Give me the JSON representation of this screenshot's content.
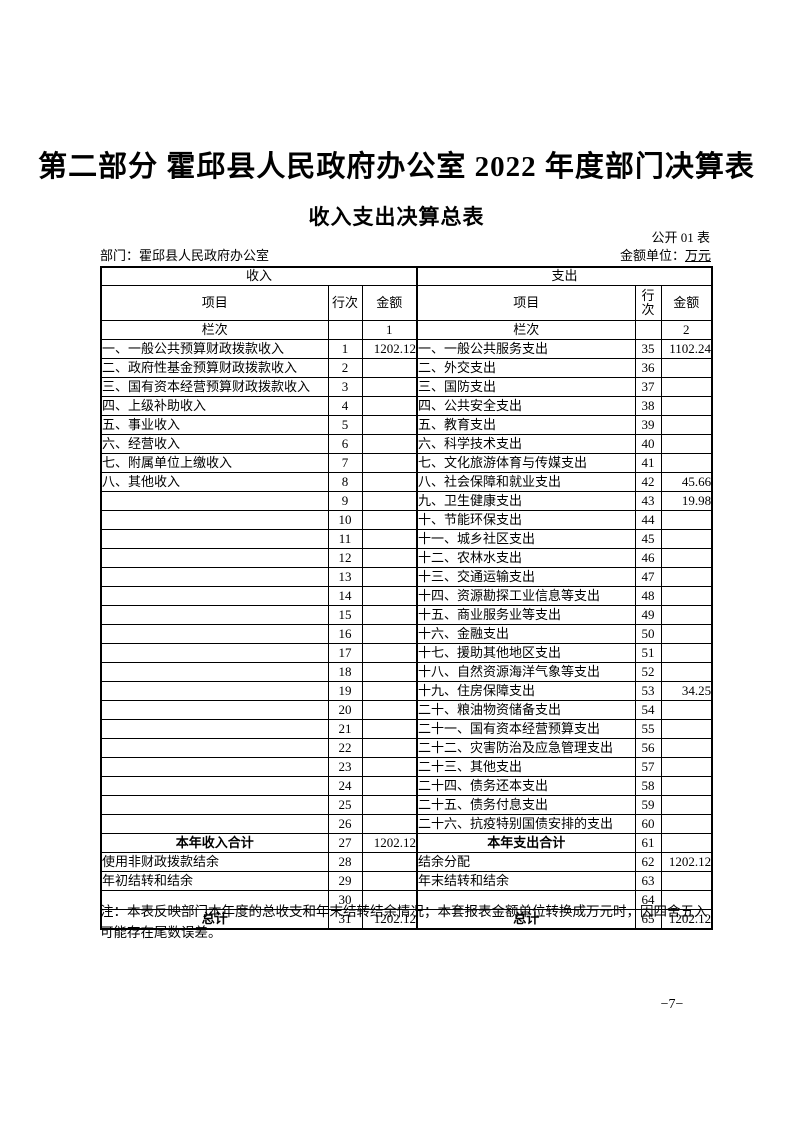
{
  "page": {
    "title": "第二部分 霍邱县人民政府办公室 2022 年度部门决算表",
    "subtitle": "收入支出决算总表",
    "table_code": "公开 01 表",
    "department": "部门：霍邱县人民政府办公室",
    "unit_label": "金额单位：",
    "unit_value": "万元",
    "note": "注：本表反映部门本年度的总收支和年末结转结余情况；本套报表金额单位转换成万元时，因四舍五入可能存在尾数误差。",
    "page_number": "−7−"
  },
  "table": {
    "income_header": "收入",
    "expense_header": "支出",
    "col_item": "项目",
    "col_row": "行次",
    "col_amount": "金额",
    "lanci": "栏次",
    "income_col_index": "1",
    "expense_col_index": "2",
    "rows": [
      {
        "income_item": "一、一般公共预算财政拨款收入",
        "income_row": "1",
        "income_amount": "1202.12",
        "expense_item": "一、一般公共服务支出",
        "expense_row": "35",
        "expense_amount": "1102.24"
      },
      {
        "income_item": "二、政府性基金预算财政拨款收入",
        "income_row": "2",
        "income_amount": "",
        "expense_item": "二、外交支出",
        "expense_row": "36",
        "expense_amount": ""
      },
      {
        "income_item": "三、国有资本经营预算财政拨款收入",
        "income_row": "3",
        "income_amount": "",
        "expense_item": "三、国防支出",
        "expense_row": "37",
        "expense_amount": ""
      },
      {
        "income_item": "四、上级补助收入",
        "income_row": "4",
        "income_amount": "",
        "expense_item": "四、公共安全支出",
        "expense_row": "38",
        "expense_amount": ""
      },
      {
        "income_item": "五、事业收入",
        "income_row": "5",
        "income_amount": "",
        "expense_item": "五、教育支出",
        "expense_row": "39",
        "expense_amount": ""
      },
      {
        "income_item": "六、经营收入",
        "income_row": "6",
        "income_amount": "",
        "expense_item": "六、科学技术支出",
        "expense_row": "40",
        "expense_amount": ""
      },
      {
        "income_item": "七、附属单位上缴收入",
        "income_row": "7",
        "income_amount": "",
        "expense_item": "七、文化旅游体育与传媒支出",
        "expense_row": "41",
        "expense_amount": ""
      },
      {
        "income_item": "八、其他收入",
        "income_row": "8",
        "income_amount": "",
        "expense_item": "八、社会保障和就业支出",
        "expense_row": "42",
        "expense_amount": "45.66"
      },
      {
        "income_item": "",
        "income_row": "9",
        "income_amount": "",
        "expense_item": "九、卫生健康支出",
        "expense_row": "43",
        "expense_amount": "19.98"
      },
      {
        "income_item": "",
        "income_row": "10",
        "income_amount": "",
        "expense_item": "十、节能环保支出",
        "expense_row": "44",
        "expense_amount": ""
      },
      {
        "income_item": "",
        "income_row": "11",
        "income_amount": "",
        "expense_item": "十一、城乡社区支出",
        "expense_row": "45",
        "expense_amount": ""
      },
      {
        "income_item": "",
        "income_row": "12",
        "income_amount": "",
        "expense_item": "十二、农林水支出",
        "expense_row": "46",
        "expense_amount": ""
      },
      {
        "income_item": "",
        "income_row": "13",
        "income_amount": "",
        "expense_item": "十三、交通运输支出",
        "expense_row": "47",
        "expense_amount": ""
      },
      {
        "income_item": "",
        "income_row": "14",
        "income_amount": "",
        "expense_item": "十四、资源勘探工业信息等支出",
        "expense_row": "48",
        "expense_amount": ""
      },
      {
        "income_item": "",
        "income_row": "15",
        "income_amount": "",
        "expense_item": "十五、商业服务业等支出",
        "expense_row": "49",
        "expense_amount": ""
      },
      {
        "income_item": "",
        "income_row": "16",
        "income_amount": "",
        "expense_item": "十六、金融支出",
        "expense_row": "50",
        "expense_amount": ""
      },
      {
        "income_item": "",
        "income_row": "17",
        "income_amount": "",
        "expense_item": "十七、援助其他地区支出",
        "expense_row": "51",
        "expense_amount": ""
      },
      {
        "income_item": "",
        "income_row": "18",
        "income_amount": "",
        "expense_item": "十八、自然资源海洋气象等支出",
        "expense_row": "52",
        "expense_amount": ""
      },
      {
        "income_item": "",
        "income_row": "19",
        "income_amount": "",
        "expense_item": "十九、住房保障支出",
        "expense_row": "53",
        "expense_amount": "34.25"
      },
      {
        "income_item": "",
        "income_row": "20",
        "income_amount": "",
        "expense_item": "二十、粮油物资储备支出",
        "expense_row": "54",
        "expense_amount": ""
      },
      {
        "income_item": "",
        "income_row": "21",
        "income_amount": "",
        "expense_item": "二十一、国有资本经营预算支出",
        "expense_row": "55",
        "expense_amount": ""
      },
      {
        "income_item": "",
        "income_row": "22",
        "income_amount": "",
        "expense_item": "二十二、灾害防治及应急管理支出",
        "expense_row": "56",
        "expense_amount": ""
      },
      {
        "income_item": "",
        "income_row": "23",
        "income_amount": "",
        "expense_item": "二十三、其他支出",
        "expense_row": "57",
        "expense_amount": ""
      },
      {
        "income_item": "",
        "income_row": "24",
        "income_amount": "",
        "expense_item": "二十四、债务还本支出",
        "expense_row": "58",
        "expense_amount": ""
      },
      {
        "income_item": "",
        "income_row": "25",
        "income_amount": "",
        "expense_item": "二十五、债务付息支出",
        "expense_row": "59",
        "expense_amount": ""
      },
      {
        "income_item": "",
        "income_row": "26",
        "income_amount": "",
        "expense_item": "二十六、抗疫特别国债安排的支出",
        "expense_row": "60",
        "expense_amount": ""
      },
      {
        "income_item": "本年收入合计",
        "income_bold": true,
        "income_row": "27",
        "income_amount": "1202.12",
        "expense_item": "本年支出合计",
        "expense_bold": true,
        "expense_row": "61",
        "expense_amount": ""
      },
      {
        "income_item": "使用非财政拨款结余",
        "income_row": "28",
        "income_amount": "",
        "expense_item": "结余分配",
        "expense_row": "62",
        "expense_amount": "1202.12"
      },
      {
        "income_item": "年初结转和结余",
        "income_row": "29",
        "income_amount": "",
        "expense_item": "年末结转和结余",
        "expense_row": "63",
        "expense_amount": ""
      },
      {
        "income_item": "",
        "income_row": "30",
        "income_amount": "",
        "expense_item": "",
        "expense_row": "64",
        "expense_amount": ""
      },
      {
        "income_item": "总计",
        "income_bold": true,
        "income_row": "31",
        "income_amount": "1202.12",
        "expense_item": "总计",
        "expense_bold": true,
        "expense_row": "65",
        "expense_amount": "1202.12"
      }
    ]
  }
}
